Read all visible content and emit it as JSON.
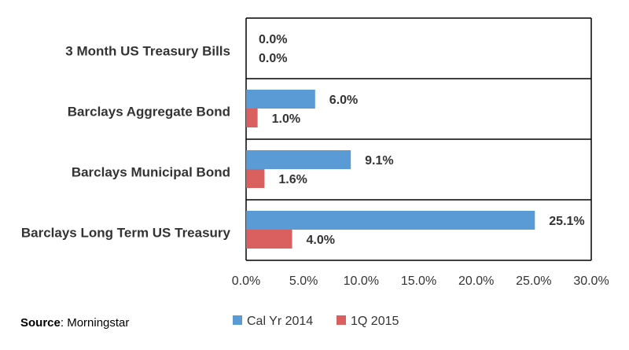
{
  "chart_data": {
    "type": "bar",
    "orientation": "horizontal",
    "categories": [
      "3 Month US Treasury Bills",
      "Barclays Aggregate Bond",
      "Barclays Municipal Bond",
      "Barclays Long Term US Treasury"
    ],
    "series": [
      {
        "name": "Cal Yr 2014",
        "color": "#5B9BD5",
        "values": [
          0.0,
          6.0,
          9.1,
          25.1
        ],
        "labels": [
          "0.0%",
          "6.0%",
          "9.1%",
          "25.1%"
        ]
      },
      {
        "name": "1Q 2015",
        "color": "#D9605E",
        "values": [
          0.0,
          1.0,
          1.6,
          4.0
        ],
        "labels": [
          "0.0%",
          "1.0%",
          "1.6%",
          "4.0%"
        ]
      }
    ],
    "xlim": [
      0,
      30
    ],
    "xticks": [
      0,
      5,
      10,
      15,
      20,
      25,
      30
    ],
    "xtick_labels": [
      "0.0%",
      "5.0%",
      "10.0%",
      "15.0%",
      "20.0%",
      "25.0%",
      "30.0%"
    ],
    "legend_position": "bottom",
    "grid": false
  },
  "source": {
    "label": "Source",
    "text": ": Morningstar"
  }
}
